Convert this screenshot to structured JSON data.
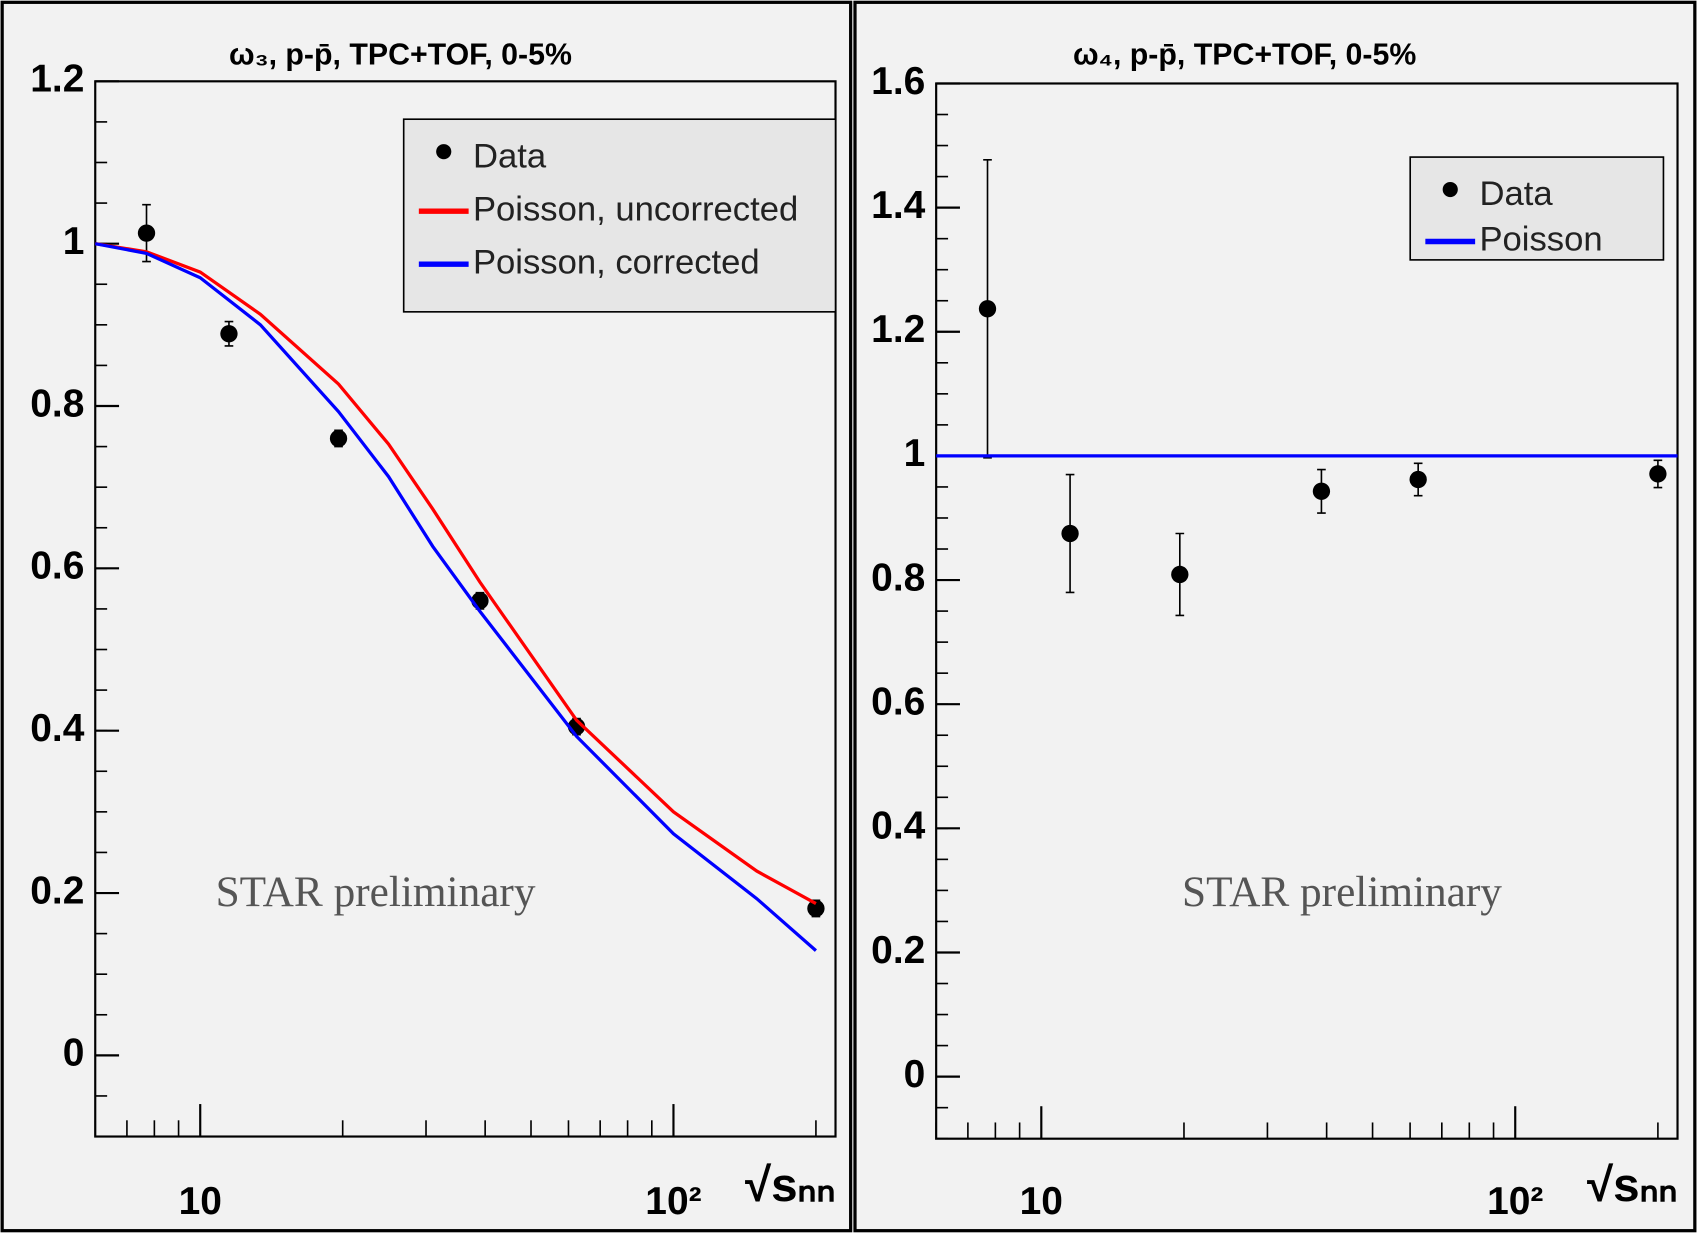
{
  "chart_data": [
    {
      "type": "line",
      "title": "ω₃, p-p̄, TPC+TOF, 0-5%",
      "x_label": "√sₙₙ",
      "annotation": "STAR preliminary",
      "xscale": "log",
      "xlim": [
        6,
        220
      ],
      "xticks": [
        10,
        {
          "value": 100,
          "label": "10²"
        }
      ],
      "ylim": [
        -0.1,
        1.2
      ],
      "yticks": [
        0,
        0.2,
        0.4,
        0.6,
        0.8,
        1,
        1.2
      ],
      "legend": "upper right",
      "series": [
        {
          "name": "Data",
          "color": "#000000",
          "style": "markers",
          "x": [
            7.7,
            11.5,
            19.6,
            39,
            62.4,
            200
          ],
          "values": [
            1.013,
            0.889,
            0.76,
            0.56,
            0.405,
            0.181
          ],
          "errors": [
            0.035,
            0.015,
            0.01,
            0.01,
            0.01,
            0.01
          ]
        },
        {
          "name": "Poisson, uncorrected",
          "color": "#ff0000",
          "style": "line",
          "x": [
            6,
            7.7,
            10,
            13.4,
            19.6,
            25,
            31,
            39,
            62.4,
            100,
            150,
            200
          ],
          "values": [
            1.0,
            0.99,
            0.965,
            0.913,
            0.827,
            0.753,
            0.673,
            0.583,
            0.413,
            0.3,
            0.227,
            0.187
          ]
        },
        {
          "name": "Poisson, corrected",
          "color": "#0000ff",
          "style": "line",
          "x": [
            6,
            7.7,
            10,
            13.4,
            19.6,
            25,
            31,
            39,
            62.4,
            100,
            150,
            200
          ],
          "values": [
            1.0,
            0.988,
            0.958,
            0.9,
            0.793,
            0.713,
            0.627,
            0.547,
            0.393,
            0.273,
            0.193,
            0.129
          ]
        }
      ]
    },
    {
      "type": "line",
      "title": "ω₄, p-p̄, TPC+TOF, 0-5%",
      "x_label": "√sₙₙ",
      "annotation": "STAR preliminary",
      "xscale": "log",
      "xlim": [
        6,
        220
      ],
      "xticks": [
        10,
        {
          "value": 100,
          "label": "10²"
        }
      ],
      "ylim": [
        -0.1,
        1.6
      ],
      "yticks": [
        0,
        0.2,
        0.4,
        0.6,
        0.8,
        1,
        1.2,
        1.4,
        1.6
      ],
      "legend": "upper right",
      "series": [
        {
          "name": "Data",
          "color": "#000000",
          "style": "markers",
          "x": [
            7.7,
            11.5,
            19.6,
            39,
            62.4,
            200
          ],
          "values": [
            1.237,
            0.875,
            0.809,
            0.943,
            0.962,
            0.971
          ],
          "errors": [
            0.24,
            0.095,
            0.066,
            0.035,
            0.026,
            0.022
          ]
        },
        {
          "name": "Poisson",
          "color": "#0000ff",
          "style": "line",
          "x": [
            6,
            220
          ],
          "values": [
            1,
            1
          ]
        }
      ]
    }
  ]
}
